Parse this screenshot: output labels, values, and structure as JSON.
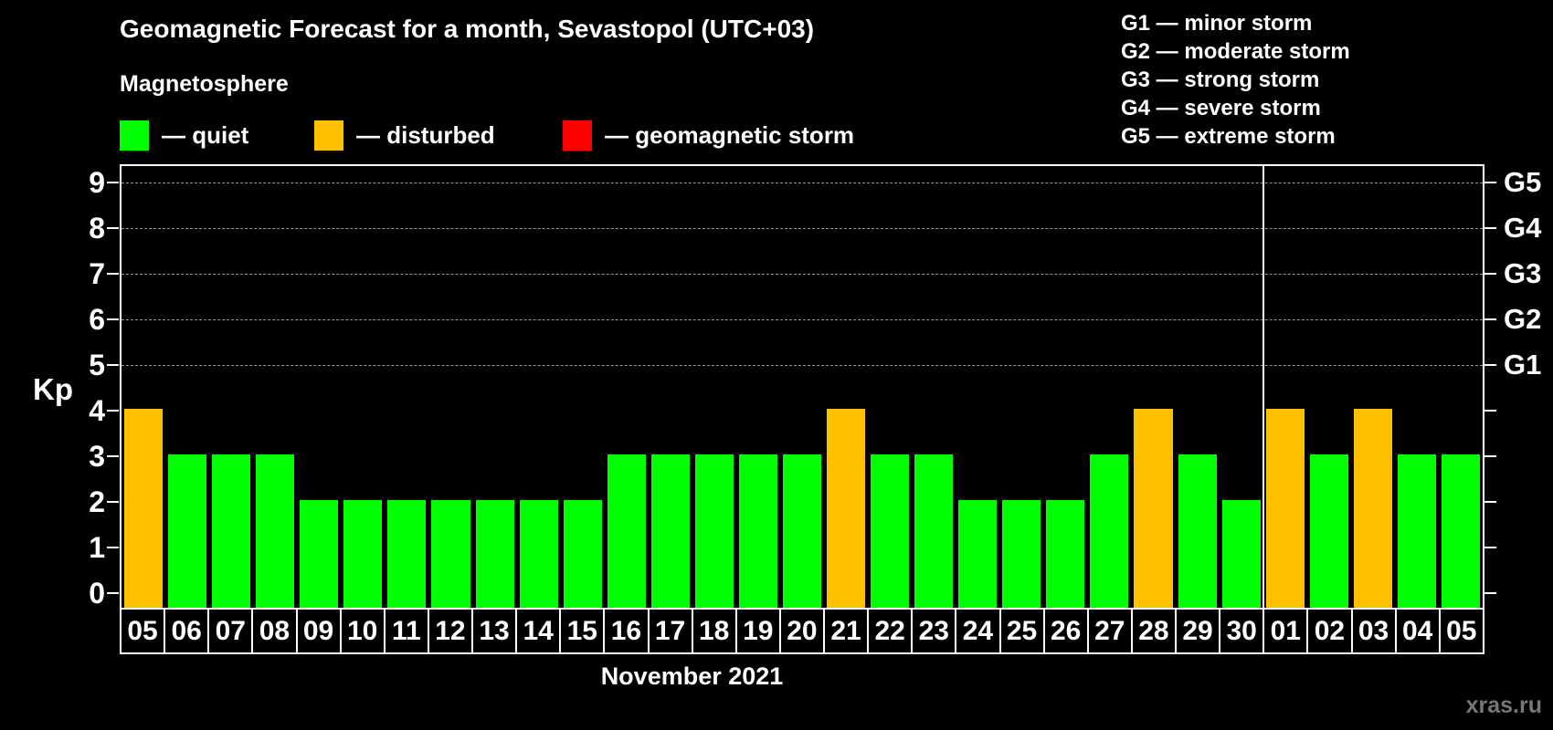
{
  "header": {
    "title": "Geomagnetic Forecast for a month, Sevastopol (UTC+03)",
    "subtitle": "Magnetosphere"
  },
  "legend": {
    "items": [
      {
        "name": "quiet",
        "label": "— quiet",
        "color": "#00ff00"
      },
      {
        "name": "disturbed",
        "label": "— disturbed",
        "color": "#ffc000"
      },
      {
        "name": "geomagnetic-storm",
        "label": "— geomagnetic storm",
        "color": "#ff0000"
      }
    ]
  },
  "g_legend": {
    "items": [
      "G1 — minor storm",
      "G2 — moderate storm",
      "G3 — strong storm",
      "G4 — severe storm",
      "G5 — extreme storm"
    ]
  },
  "chart_data": {
    "type": "bar",
    "title": "Geomagnetic Forecast for a month, Sevastopol (UTC+03)",
    "ylabel": "Kp",
    "xlabel": "November 2021",
    "ylim": [
      0,
      9.6
    ],
    "yticks": [
      0,
      1,
      2,
      3,
      4,
      5,
      6,
      7,
      8,
      9
    ],
    "grid": "dashed horizontal gridlines at Kp 5 through 9",
    "legend_position": "top",
    "right_axis": [
      {
        "label": "G1",
        "kp": 5
      },
      {
        "label": "G2",
        "kp": 6
      },
      {
        "label": "G3",
        "kp": 7
      },
      {
        "label": "G4",
        "kp": 8
      },
      {
        "label": "G5",
        "kp": 9
      }
    ],
    "categories": [
      "05",
      "06",
      "07",
      "08",
      "09",
      "10",
      "11",
      "12",
      "13",
      "14",
      "15",
      "16",
      "17",
      "18",
      "19",
      "20",
      "21",
      "22",
      "23",
      "24",
      "25",
      "26",
      "27",
      "28",
      "29",
      "30",
      "01",
      "02",
      "03",
      "04",
      "05"
    ],
    "values": [
      4,
      3,
      3,
      3,
      2,
      2,
      2,
      2,
      2,
      2,
      2,
      3,
      3,
      3,
      3,
      3,
      4,
      3,
      3,
      2,
      2,
      2,
      3,
      4,
      3,
      2,
      4,
      3,
      4,
      3,
      3
    ],
    "statuses": [
      "disturbed",
      "quiet",
      "quiet",
      "quiet",
      "quiet",
      "quiet",
      "quiet",
      "quiet",
      "quiet",
      "quiet",
      "quiet",
      "quiet",
      "quiet",
      "quiet",
      "quiet",
      "quiet",
      "disturbed",
      "quiet",
      "quiet",
      "quiet",
      "quiet",
      "quiet",
      "quiet",
      "disturbed",
      "quiet",
      "quiet",
      "disturbed",
      "quiet",
      "disturbed",
      "quiet",
      "quiet"
    ],
    "status_colors": {
      "quiet": "#00ff00",
      "disturbed": "#ffc000",
      "storm": "#ff0000"
    },
    "month_separator_after_index": 25
  },
  "watermark": "xras.ru",
  "colors": {
    "background": "#000000",
    "text": "#ffffff",
    "grid": "#999999",
    "axis": "#ffffff",
    "watermark": "#777777"
  }
}
